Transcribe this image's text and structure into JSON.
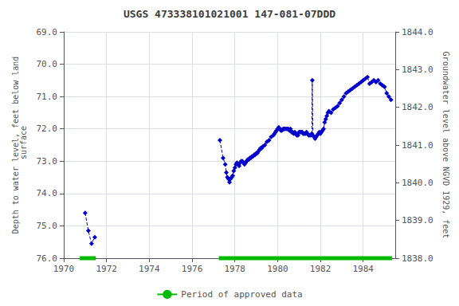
{
  "chart_data": {
    "type": "line",
    "title": "USGS 473338101021001 147-081-07DDD",
    "ylabel": "Depth to water level, feet below land\n surface",
    "y2label": "Groundwater level above NGVD 1929, feet",
    "xlim": [
      1970,
      1985.5
    ],
    "xticks": [
      1970,
      1972,
      1974,
      1976,
      1978,
      1980,
      1982,
      1984
    ],
    "ylim": [
      76.0,
      69.0
    ],
    "yticks": [
      {
        "value": 69.0,
        "label": "69.0"
      },
      {
        "value": 70.0,
        "label": "70.0"
      },
      {
        "value": 71.0,
        "label": "71.0"
      },
      {
        "value": 72.0,
        "label": "72.0"
      },
      {
        "value": 73.0,
        "label": "73.0"
      },
      {
        "value": 74.0,
        "label": "74.0"
      },
      {
        "value": 75.0,
        "label": "75.0"
      },
      {
        "value": 76.0,
        "label": "76.0"
      }
    ],
    "y2lim": [
      1838.0,
      1844.0
    ],
    "y2ticks": [
      {
        "value": 1838.0,
        "label": "1838.0"
      },
      {
        "value": 1839.0,
        "label": "1839.0"
      },
      {
        "value": 1840.0,
        "label": "1840.0"
      },
      {
        "value": 1841.0,
        "label": "1841.0"
      },
      {
        "value": 1842.0,
        "label": "1842.0"
      },
      {
        "value": 1843.0,
        "label": "1843.0"
      },
      {
        "value": 1844.0,
        "label": "1844.0"
      }
    ],
    "grid": true,
    "legend": "bottom",
    "series": [
      {
        "color": "#0000cc",
        "marker": "diamond",
        "line_style": "dashed",
        "x": [
          1971.0,
          1971.15,
          1971.3,
          1971.45
        ],
        "values": [
          74.6,
          75.15,
          75.55,
          75.35
        ]
      },
      {
        "color": "#0000cc",
        "marker": "diamond",
        "line_style": "dashed",
        "x": [
          1977.3,
          1977.45,
          1977.55,
          1977.6,
          1977.65,
          1977.7,
          1977.75,
          1977.8,
          1977.85,
          1977.9,
          1977.95,
          1978.0,
          1978.05,
          1978.1,
          1978.15,
          1978.2,
          1978.25,
          1978.3,
          1978.35,
          1978.4,
          1978.45,
          1978.5,
          1978.55,
          1978.6,
          1978.65,
          1978.7,
          1978.75,
          1978.8,
          1978.85,
          1978.9,
          1978.95,
          1979.0,
          1979.05,
          1979.1,
          1979.15,
          1979.2,
          1979.25,
          1979.3,
          1979.4,
          1979.5,
          1979.6,
          1979.7,
          1979.8,
          1979.85,
          1979.9,
          1979.95,
          1980.0,
          1980.05,
          1980.1,
          1980.15,
          1980.2,
          1980.25,
          1980.3,
          1980.35,
          1980.4,
          1980.45,
          1980.5,
          1980.55,
          1980.6,
          1980.65,
          1980.7,
          1980.75,
          1980.8,
          1980.85,
          1980.9,
          1980.95,
          1981.0,
          1981.05,
          1981.1,
          1981.15,
          1981.2,
          1981.25,
          1981.3,
          1981.35,
          1981.4,
          1981.45,
          1981.5,
          1981.55,
          1981.6,
          1981.62,
          1981.65,
          1981.7,
          1981.75,
          1981.8,
          1981.85,
          1981.9,
          1981.95,
          1982.0,
          1982.05,
          1982.1,
          1982.15,
          1982.2,
          1982.25,
          1982.3,
          1982.35,
          1982.4,
          1982.5,
          1982.6,
          1982.7,
          1982.8,
          1982.9,
          1983.0,
          1983.1,
          1983.2,
          1983.3,
          1983.4,
          1983.5,
          1983.6,
          1983.7,
          1983.8,
          1983.9,
          1984.0,
          1984.1,
          1984.2,
          1984.3,
          1984.4,
          1984.5,
          1984.6,
          1984.7,
          1984.8,
          1984.9,
          1985.0,
          1985.1,
          1985.2,
          1985.3
        ],
        "values": [
          72.35,
          72.9,
          73.1,
          73.35,
          73.5,
          73.55,
          73.65,
          73.55,
          73.5,
          73.45,
          73.3,
          73.2,
          73.1,
          73.05,
          73.1,
          73.15,
          73.05,
          73.0,
          73.0,
          73.05,
          73.1,
          73.05,
          73.0,
          72.95,
          72.95,
          72.9,
          72.9,
          72.85,
          72.85,
          72.8,
          72.8,
          72.75,
          72.75,
          72.7,
          72.65,
          72.6,
          72.6,
          72.55,
          72.5,
          72.4,
          72.35,
          72.25,
          72.2,
          72.15,
          72.1,
          72.05,
          72.0,
          71.95,
          72.0,
          72.05,
          72.05,
          72.0,
          72.0,
          72.0,
          72.0,
          72.0,
          72.0,
          72.05,
          72.0,
          72.1,
          72.1,
          72.15,
          72.1,
          72.15,
          72.2,
          72.2,
          72.1,
          72.1,
          72.1,
          72.1,
          72.15,
          72.15,
          72.15,
          72.1,
          72.15,
          72.2,
          72.2,
          72.2,
          72.15,
          70.5,
          72.2,
          72.25,
          72.3,
          72.25,
          72.2,
          72.15,
          72.1,
          72.15,
          72.1,
          72.05,
          72.0,
          71.8,
          71.7,
          71.6,
          71.5,
          71.45,
          71.5,
          71.4,
          71.35,
          71.3,
          71.2,
          71.1,
          71.0,
          70.9,
          70.85,
          70.8,
          70.75,
          70.7,
          70.65,
          70.6,
          70.55,
          70.5,
          70.45,
          70.4,
          70.6,
          70.55,
          70.5,
          70.55,
          70.5,
          70.6,
          70.65,
          70.7,
          70.9,
          71.0,
          71.1
        ]
      },
      {
        "name": "Period of approved data",
        "type": "band",
        "color": "#00bb00",
        "periods": [
          [
            1970.75,
            1971.5
          ],
          [
            1977.25,
            1985.35
          ]
        ]
      }
    ]
  }
}
